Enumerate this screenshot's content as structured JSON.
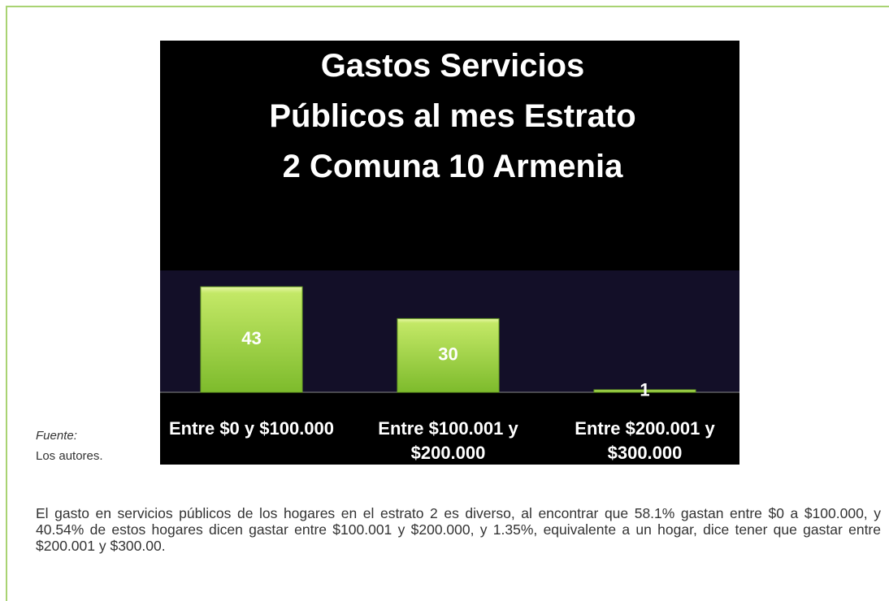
{
  "chart_data": {
    "type": "bar",
    "title": "Gastos Servicios Públicos al mes Estrato 2 Comuna 10 Armenia",
    "categories": [
      "Entre $0 y $100.000",
      "Entre $100.001 y $200.000",
      "Entre $200.001 y $300.000"
    ],
    "values": [
      43,
      30,
      1
    ],
    "color": "#9fd447"
  },
  "source": {
    "label": "Fuente:",
    "text": "Los autores."
  },
  "paragraph": "El gasto en servicios públicos de los hogares en el estrato 2  es diverso, al encontrar que 58.1%  gastan entre $0 a $100.000, y 40.54% de estos hogares dicen gastar  entre $100.001 y $200.000, y 1.35%, equivalente a un hogar, dice  tener que gastar entre $200.001  y $300.00."
}
